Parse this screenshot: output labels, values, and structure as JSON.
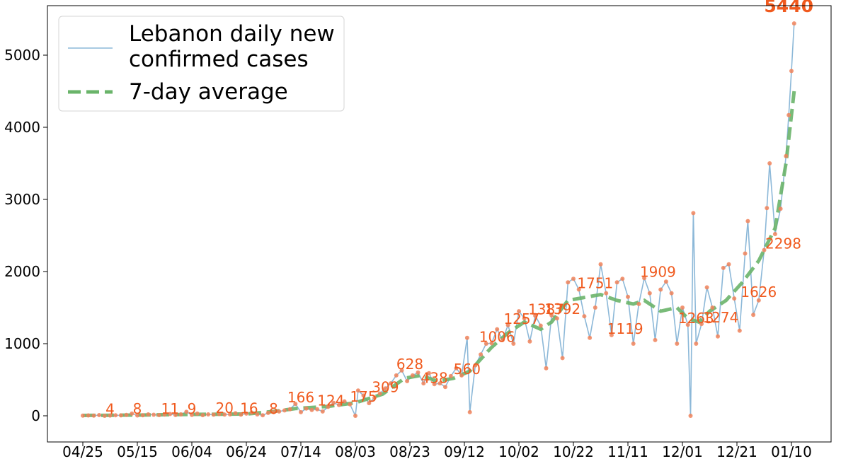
{
  "chart_data": {
    "type": "line",
    "title": "",
    "xlabel": "",
    "ylabel": "",
    "ylim": [
      -400,
      5600
    ],
    "grid": false,
    "legend_placement": "top-left",
    "x_ticks": [
      "04/25",
      "05/15",
      "06/04",
      "06/24",
      "07/14",
      "08/03",
      "08/23",
      "09/12",
      "10/02",
      "10/22",
      "11/11",
      "12/01",
      "12/21",
      "01/10"
    ],
    "y_ticks": [
      0,
      1000,
      2000,
      3000,
      4000,
      5000
    ],
    "legend": [
      {
        "label_lines": [
          "Lebanon daily new",
          "confirmed cases"
        ],
        "color": "#8cb8d8",
        "style": "solid"
      },
      {
        "label_lines": [
          "7-day average"
        ],
        "color": "#6ab46a",
        "style": "dashed"
      }
    ],
    "series": [
      {
        "name": "Lebanon daily new confirmed cases",
        "color": "#8cb8d8",
        "marker_color": "#f0825a",
        "points": [
          [
            0,
            2
          ],
          [
            2,
            5
          ],
          [
            4,
            3
          ],
          [
            6,
            10
          ],
          [
            8,
            0
          ],
          [
            10,
            4
          ],
          [
            12,
            8
          ],
          [
            14,
            6
          ],
          [
            16,
            12
          ],
          [
            18,
            30
          ],
          [
            20,
            5
          ],
          [
            22,
            8
          ],
          [
            24,
            20
          ],
          [
            26,
            15
          ],
          [
            28,
            10
          ],
          [
            30,
            18
          ],
          [
            32,
            25
          ],
          [
            34,
            11
          ],
          [
            36,
            20
          ],
          [
            38,
            55
          ],
          [
            40,
            12
          ],
          [
            42,
            30
          ],
          [
            44,
            9
          ],
          [
            46,
            20
          ],
          [
            48,
            16
          ],
          [
            50,
            25
          ],
          [
            52,
            18
          ],
          [
            54,
            20
          ],
          [
            56,
            35
          ],
          [
            58,
            16
          ],
          [
            60,
            30
          ],
          [
            62,
            45
          ],
          [
            64,
            20
          ],
          [
            66,
            8
          ],
          [
            68,
            40
          ],
          [
            70,
            50
          ],
          [
            72,
            60
          ],
          [
            74,
            75
          ],
          [
            76,
            90
          ],
          [
            78,
            166
          ],
          [
            80,
            50
          ],
          [
            82,
            100
          ],
          [
            84,
            80
          ],
          [
            86,
            90
          ],
          [
            88,
            60
          ],
          [
            90,
            124
          ],
          [
            92,
            180
          ],
          [
            94,
            150
          ],
          [
            96,
            200
          ],
          [
            98,
            160
          ],
          [
            100,
            0
          ],
          [
            101,
            350
          ],
          [
            103,
            280
          ],
          [
            105,
            175
          ],
          [
            107,
            250
          ],
          [
            109,
            309
          ],
          [
            111,
            380
          ],
          [
            113,
            450
          ],
          [
            115,
            560
          ],
          [
            117,
            628
          ],
          [
            119,
            480
          ],
          [
            121,
            560
          ],
          [
            123,
            600
          ],
          [
            125,
            450
          ],
          [
            127,
            590
          ],
          [
            129,
            438
          ],
          [
            131,
            450
          ],
          [
            133,
            400
          ],
          [
            135,
            550
          ],
          [
            137,
            660
          ],
          [
            139,
            560
          ],
          [
            141,
            1080
          ],
          [
            142,
            50
          ],
          [
            144,
            700
          ],
          [
            146,
            850
          ],
          [
            148,
            1000
          ],
          [
            150,
            1006
          ],
          [
            152,
            1200
          ],
          [
            154,
            1050
          ],
          [
            156,
            1257
          ],
          [
            158,
            1000
          ],
          [
            160,
            1450
          ],
          [
            162,
            1350
          ],
          [
            164,
            1030
          ],
          [
            166,
            1387
          ],
          [
            168,
            1250
          ],
          [
            170,
            660
          ],
          [
            172,
            1392
          ],
          [
            174,
            1350
          ],
          [
            176,
            800
          ],
          [
            178,
            1850
          ],
          [
            180,
            1900
          ],
          [
            182,
            1751
          ],
          [
            184,
            1380
          ],
          [
            186,
            1080
          ],
          [
            188,
            1500
          ],
          [
            190,
            2100
          ],
          [
            192,
            1700
          ],
          [
            194,
            1119
          ],
          [
            196,
            1850
          ],
          [
            198,
            1900
          ],
          [
            200,
            1650
          ],
          [
            202,
            1000
          ],
          [
            204,
            1550
          ],
          [
            206,
            1909
          ],
          [
            208,
            1700
          ],
          [
            210,
            1050
          ],
          [
            212,
            1750
          ],
          [
            214,
            1860
          ],
          [
            216,
            1700
          ],
          [
            218,
            1000
          ],
          [
            220,
            1500
          ],
          [
            222,
            1263
          ],
          [
            223,
            0
          ],
          [
            224,
            2810
          ],
          [
            225,
            1000
          ],
          [
            227,
            1274
          ],
          [
            229,
            1780
          ],
          [
            231,
            1500
          ],
          [
            233,
            1100
          ],
          [
            235,
            2050
          ],
          [
            237,
            2100
          ],
          [
            239,
            1626
          ],
          [
            241,
            1180
          ],
          [
            243,
            2250
          ],
          [
            244,
            2700
          ],
          [
            246,
            1400
          ],
          [
            248,
            1600
          ],
          [
            250,
            2298
          ],
          [
            251,
            2880
          ],
          [
            252,
            3500
          ],
          [
            254,
            2520
          ],
          [
            256,
            2870
          ],
          [
            258,
            3600
          ],
          [
            259,
            4170
          ],
          [
            260,
            4780
          ],
          [
            261,
            5440
          ]
        ]
      },
      {
        "name": "7-day average",
        "color": "#6ab46a",
        "points": [
          [
            0,
            5
          ],
          [
            20,
            10
          ],
          [
            40,
            20
          ],
          [
            60,
            25
          ],
          [
            70,
            60
          ],
          [
            78,
            100
          ],
          [
            90,
            130
          ],
          [
            100,
            180
          ],
          [
            110,
            300
          ],
          [
            118,
            520
          ],
          [
            124,
            560
          ],
          [
            130,
            480
          ],
          [
            136,
            520
          ],
          [
            142,
            620
          ],
          [
            150,
            950
          ],
          [
            156,
            1150
          ],
          [
            162,
            1300
          ],
          [
            168,
            1200
          ],
          [
            172,
            1300
          ],
          [
            178,
            1600
          ],
          [
            184,
            1640
          ],
          [
            190,
            1680
          ],
          [
            196,
            1600
          ],
          [
            202,
            1550
          ],
          [
            206,
            1600
          ],
          [
            212,
            1450
          ],
          [
            218,
            1500
          ],
          [
            222,
            1350
          ],
          [
            226,
            1300
          ],
          [
            230,
            1450
          ],
          [
            236,
            1600
          ],
          [
            242,
            1850
          ],
          [
            248,
            2150
          ],
          [
            254,
            2600
          ],
          [
            258,
            3500
          ],
          [
            261,
            4500
          ]
        ]
      }
    ],
    "data_labels": [
      {
        "x": 10,
        "y": 4,
        "text": "4"
      },
      {
        "x": 20,
        "y": 8,
        "text": "8"
      },
      {
        "x": 32,
        "y": 11,
        "text": "11"
      },
      {
        "x": 40,
        "y": 9,
        "text": "9"
      },
      {
        "x": 52,
        "y": 20,
        "text": "20"
      },
      {
        "x": 61,
        "y": 16,
        "text": "16"
      },
      {
        "x": 70,
        "y": 8,
        "text": "8"
      },
      {
        "x": 80,
        "y": 166,
        "text": "166"
      },
      {
        "x": 91,
        "y": 124,
        "text": "124"
      },
      {
        "x": 103,
        "y": 175,
        "text": "175"
      },
      {
        "x": 111,
        "y": 309,
        "text": "309"
      },
      {
        "x": 120,
        "y": 628,
        "text": "628"
      },
      {
        "x": 129,
        "y": 438,
        "text": "438"
      },
      {
        "x": 141,
        "y": 560,
        "text": "560"
      },
      {
        "x": 152,
        "y": 1006,
        "text": "1006"
      },
      {
        "x": 161,
        "y": 1257,
        "text": "1257"
      },
      {
        "x": 170,
        "y": 1387,
        "text": "1387"
      },
      {
        "x": 176,
        "y": 1392,
        "text": "1392"
      },
      {
        "x": 188,
        "y": 1751,
        "text": "1751"
      },
      {
        "x": 199,
        "y": 1119,
        "text": "1119"
      },
      {
        "x": 211,
        "y": 1909,
        "text": "1909"
      },
      {
        "x": 225,
        "y": 1263,
        "text": "1263"
      },
      {
        "x": 234,
        "y": 1274,
        "text": "1274"
      },
      {
        "x": 248,
        "y": 1626,
        "text": "1626"
      },
      {
        "x": 257,
        "y": 2298,
        "text": "2298"
      }
    ],
    "peak_label": {
      "x": 259,
      "y": 5440,
      "text": "5440"
    }
  }
}
